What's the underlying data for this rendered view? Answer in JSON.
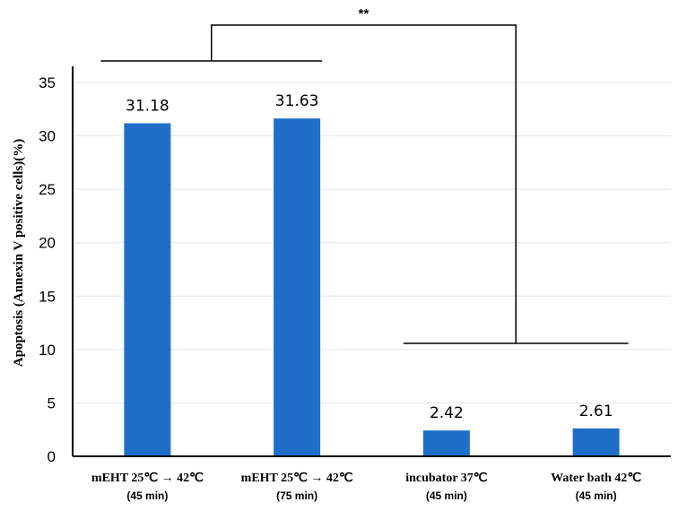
{
  "chart_data": {
    "type": "bar",
    "ylabel": "Apoptosis (Annexin V positive cells)(%)",
    "ylim": [
      0,
      35
    ],
    "yticks": [
      0,
      5,
      10,
      15,
      20,
      25,
      30,
      35
    ],
    "grid": true,
    "categories": [
      {
        "line1": "mEHT 25℃ → 42℃",
        "line2": "(45 min)"
      },
      {
        "line1": "mEHT 25℃ → 42℃",
        "line2": "(75 min)"
      },
      {
        "line1": "incubator 37℃",
        "line2": "(45 min)"
      },
      {
        "line1": "Water bath 42℃",
        "line2": "(45 min)"
      }
    ],
    "values": [
      31.18,
      31.63,
      2.42,
      2.61
    ],
    "data_labels": [
      "31.18",
      "31.63",
      "2.42",
      "2.61"
    ],
    "bar_color": "#1f6fc9",
    "significance": {
      "label": "**",
      "groups": [
        [
          0,
          1
        ],
        [
          2,
          3
        ]
      ]
    }
  }
}
